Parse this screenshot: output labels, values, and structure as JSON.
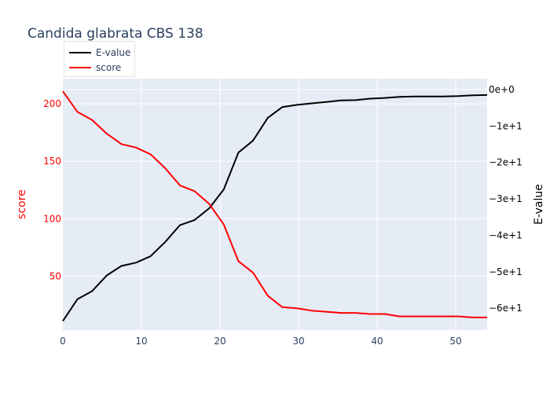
{
  "chart_data": {
    "type": "line",
    "title": "Candida glabrata CBS 138",
    "xlabel": "",
    "ylabel": "score",
    "y2label": "E-value",
    "xlim": [
      0,
      54
    ],
    "ylim": [
      3,
      222
    ],
    "y2lim": [
      -66,
      3
    ],
    "grid": true,
    "legend_position": "top-left",
    "x_ticks": [
      0,
      10,
      20,
      30,
      40,
      50
    ],
    "x_tick_labels": [
      "0",
      "10",
      "20",
      "30",
      "40",
      "50"
    ],
    "y_ticks": [
      50,
      100,
      150,
      200
    ],
    "y_tick_labels": [
      "50",
      "100",
      "150",
      "200"
    ],
    "y2_ticks": [
      0,
      -10,
      -20,
      -30,
      -40,
      -50,
      -60
    ],
    "y2_tick_labels": [
      "0e+0",
      "−1e+1",
      "−2e+1",
      "−3e+1",
      "−4e+1",
      "−5e+1",
      "−6e+1"
    ],
    "colors": {
      "plot_bg": "#e5ecf6",
      "grid": "#ffffff",
      "score": "#ff0000",
      "evalue": "#000000",
      "text": "#2a3f5f"
    },
    "series": [
      {
        "name": "E-value",
        "axis": "y2",
        "x": [
          0,
          1.86,
          3.72,
          5.59,
          7.45,
          9.31,
          11.17,
          13.03,
          14.9,
          16.76,
          18.62,
          20.48,
          22.34,
          24.21,
          26.07,
          27.93,
          29.79,
          31.66,
          33.52,
          35.38,
          37.24,
          39.1,
          40.97,
          42.83,
          44.69,
          46.55,
          48.41,
          50.28,
          52.14,
          54
        ],
        "values": [
          -63.5,
          -57.5,
          -55.3,
          -51.0,
          -48.4,
          -47.5,
          -45.7,
          -41.8,
          -37.2,
          -35.8,
          -32.6,
          -27.4,
          -17.3,
          -14.0,
          -7.8,
          -4.8,
          -4.2,
          -3.8,
          -3.4,
          -3.0,
          -2.9,
          -2.5,
          -2.3,
          -2.0,
          -1.9,
          -1.9,
          -1.9,
          -1.8,
          -1.6,
          -1.5
        ]
      },
      {
        "name": "score",
        "axis": "y",
        "x": [
          0,
          1.86,
          3.72,
          5.59,
          7.45,
          9.31,
          11.17,
          13.03,
          14.9,
          16.76,
          18.62,
          20.48,
          22.34,
          24.21,
          26.07,
          27.93,
          29.79,
          31.66,
          33.52,
          35.38,
          37.24,
          39.1,
          40.97,
          42.83,
          44.69,
          46.55,
          48.41,
          50.28,
          52.14,
          54
        ],
        "values": [
          211,
          193,
          186,
          174,
          165,
          162,
          156,
          144,
          129,
          124,
          113,
          95,
          63,
          53,
          33,
          23,
          22,
          20,
          19,
          18,
          18,
          17,
          17,
          15,
          15,
          15,
          15,
          15,
          14,
          14
        ]
      }
    ]
  }
}
